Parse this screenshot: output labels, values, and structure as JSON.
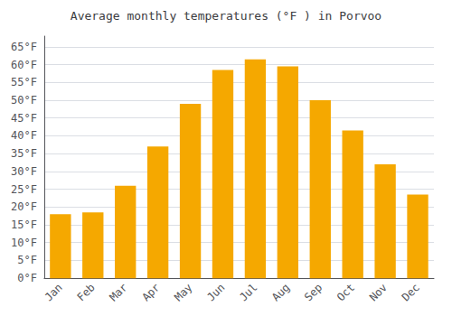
{
  "chart_data": {
    "type": "bar",
    "title": "Average monthly temperatures (°F ) in Porvoo",
    "categories": [
      "Jan",
      "Feb",
      "Mar",
      "Apr",
      "May",
      "Jun",
      "Jul",
      "Aug",
      "Sep",
      "Oct",
      "Nov",
      "Dec"
    ],
    "values": [
      18,
      18.5,
      26,
      37,
      49,
      58.5,
      61.5,
      59.5,
      50,
      41.5,
      32,
      23.5
    ],
    "color": "#F5A800",
    "ylim": [
      0,
      68
    ],
    "yticks": [
      {
        "value": 0,
        "label": "0°F"
      },
      {
        "value": 5,
        "label": "5°F"
      },
      {
        "value": 10,
        "label": "10°F"
      },
      {
        "value": 15,
        "label": "15°F"
      },
      {
        "value": 20,
        "label": "20°F"
      },
      {
        "value": 25,
        "label": "25°F"
      },
      {
        "value": 30,
        "label": "30°F"
      },
      {
        "value": 35,
        "label": "35°F"
      },
      {
        "value": 40,
        "label": "40°F"
      },
      {
        "value": 45,
        "label": "45°F"
      },
      {
        "value": 50,
        "label": "50°F"
      },
      {
        "value": 55,
        "label": "55°F"
      },
      {
        "value": 60,
        "label": "60°F"
      },
      {
        "value": 65,
        "label": "65°F"
      }
    ],
    "grid": true
  }
}
